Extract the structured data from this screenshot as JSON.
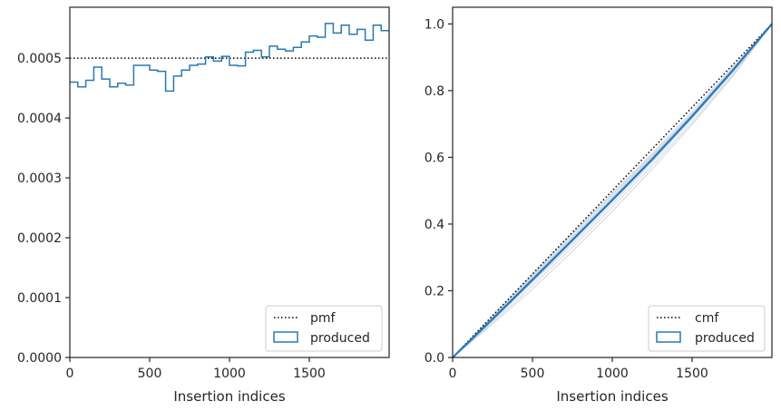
{
  "chart_data": [
    {
      "type": "histogram",
      "xlabel": "Insertion indices",
      "ylabel": "",
      "xlim": [
        0,
        2000
      ],
      "ylim": [
        0,
        0.000585
      ],
      "xticks": [
        0,
        500,
        1000,
        1500
      ],
      "xtick_labels": [
        "0",
        "500",
        "1000",
        "1500"
      ],
      "yticks": [
        0,
        0.0001,
        0.0002,
        0.0003,
        0.0004,
        0.0005
      ],
      "ytick_labels": [
        "0.0000",
        "0.0001",
        "0.0002",
        "0.0003",
        "0.0004",
        "0.0005"
      ],
      "grid": false,
      "legend_position": "lower right",
      "series": [
        {
          "name": "pmf",
          "style": "dotted",
          "color": "#000000",
          "x": [
            0,
            2000
          ],
          "y": [
            0.0005,
            0.0005
          ]
        },
        {
          "name": "produced",
          "style": "step",
          "color": "#2878b5",
          "bin_edges": [
            0,
            50,
            100,
            150,
            200,
            250,
            300,
            350,
            400,
            450,
            500,
            550,
            600,
            650,
            700,
            750,
            800,
            850,
            900,
            950,
            1000,
            1050,
            1100,
            1150,
            1200,
            1250,
            1300,
            1350,
            1400,
            1450,
            1500,
            1550,
            1600,
            1650,
            1700,
            1750,
            1800,
            1850,
            1900,
            1950,
            2000
          ],
          "values": [
            0.00046,
            0.000452,
            0.000463,
            0.000485,
            0.000465,
            0.000452,
            0.000458,
            0.000455,
            0.000488,
            0.000488,
            0.00048,
            0.000478,
            0.000445,
            0.00047,
            0.00048,
            0.000488,
            0.00049,
            0.000502,
            0.000495,
            0.000503,
            0.000488,
            0.000487,
            0.00051,
            0.000513,
            0.000502,
            0.00052,
            0.000515,
            0.000512,
            0.000518,
            0.000527,
            0.000537,
            0.000535,
            0.000558,
            0.000542,
            0.000555,
            0.00054,
            0.000548,
            0.00053,
            0.000555,
            0.000546
          ]
        }
      ]
    },
    {
      "type": "line",
      "xlabel": "Insertion indices",
      "ylabel": "",
      "xlim": [
        0,
        2000
      ],
      "ylim": [
        0,
        1.05
      ],
      "xticks": [
        0,
        500,
        1000,
        1500
      ],
      "xtick_labels": [
        "0",
        "500",
        "1000",
        "1500"
      ],
      "yticks": [
        0,
        0.2,
        0.4,
        0.6,
        0.8,
        1.0
      ],
      "ytick_labels": [
        "0.0",
        "0.2",
        "0.4",
        "0.6",
        "0.8",
        "1.0"
      ],
      "grid": false,
      "legend_position": "lower right",
      "series": [
        {
          "name": "cmf",
          "style": "dotted",
          "color": "#000000",
          "x": [
            0,
            2000
          ],
          "y": [
            0,
            1
          ]
        },
        {
          "name": "produced",
          "style": "line",
          "color": "#2878b5",
          "x": [
            0,
            250,
            500,
            750,
            1000,
            1250,
            1500,
            1750,
            2000
          ],
          "y": [
            0,
            0.115,
            0.233,
            0.352,
            0.472,
            0.594,
            0.723,
            0.858,
            1.0
          ]
        }
      ],
      "replicates": {
        "color": "#b8c8dc",
        "x": [
          0,
          250,
          500,
          750,
          1000,
          1250,
          1500,
          1750,
          2000
        ],
        "lines": [
          [
            0,
            0.105,
            0.215,
            0.33,
            0.45,
            0.575,
            0.705,
            0.845,
            1.0
          ],
          [
            0,
            0.125,
            0.25,
            0.372,
            0.492,
            0.612,
            0.738,
            0.868,
            1.0
          ],
          [
            0,
            0.112,
            0.225,
            0.34,
            0.46,
            0.585,
            0.715,
            0.852,
            1.0
          ],
          [
            0,
            0.12,
            0.245,
            0.368,
            0.488,
            0.607,
            0.73,
            0.862,
            1.0
          ],
          [
            0,
            0.1,
            0.205,
            0.318,
            0.438,
            0.565,
            0.698,
            0.84,
            1.0
          ],
          [
            0,
            0.118,
            0.238,
            0.358,
            0.478,
            0.6,
            0.728,
            0.86,
            1.0
          ],
          [
            0,
            0.11,
            0.228,
            0.347,
            0.468,
            0.59,
            0.72,
            0.855,
            1.0
          ],
          [
            0,
            0.122,
            0.242,
            0.362,
            0.482,
            0.603,
            0.732,
            0.864,
            1.0
          ]
        ]
      }
    }
  ]
}
